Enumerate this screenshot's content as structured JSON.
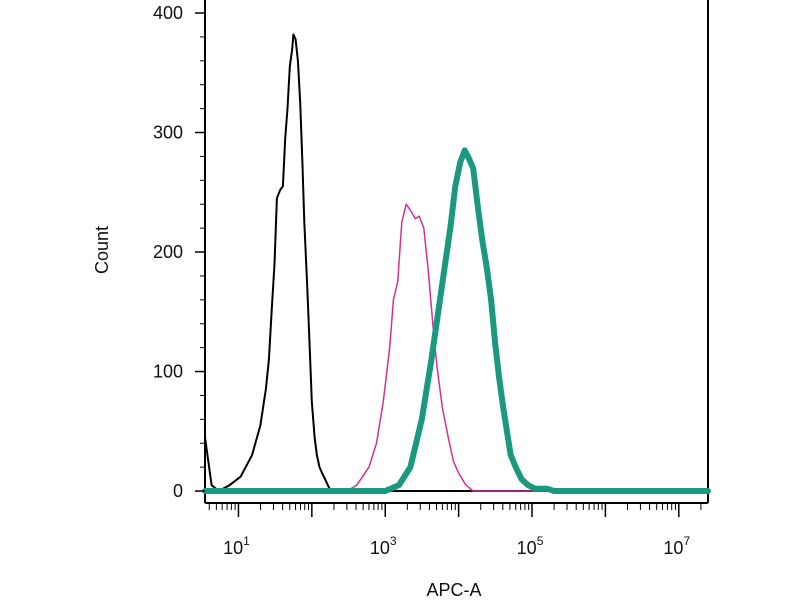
{
  "chart_data": {
    "type": "line",
    "title": "",
    "xlabel": "APC-A",
    "ylabel": "Count",
    "xscale": "log",
    "xlim": [
      3.5,
      25000000
    ],
    "ylim": [
      -10,
      400
    ],
    "grid": false,
    "legend": "none",
    "y_ticks": [
      {
        "value": 0,
        "label": "0"
      },
      {
        "value": 100,
        "label": "100"
      },
      {
        "value": 200,
        "label": "200"
      },
      {
        "value": 300,
        "label": "300"
      },
      {
        "value": 400,
        "label": "400"
      }
    ],
    "x_ticks": [
      {
        "value": 10,
        "base": "10",
        "exp": "1"
      },
      {
        "value": 1000,
        "base": "10",
        "exp": "3"
      },
      {
        "value": 100000,
        "base": "10",
        "exp": "5"
      },
      {
        "value": 10000000,
        "base": "10",
        "exp": "7"
      }
    ],
    "series": [
      {
        "color": "#000000",
        "x": [
          3.5,
          4.3,
          5.4,
          7.6,
          10.7,
          15.3,
          19.9,
          23.6,
          26,
          28.3,
          31,
          33.4,
          37,
          40.3,
          43.3,
          46.6,
          50,
          54,
          56,
          60,
          64.6,
          69.4,
          74.7,
          79,
          86.7,
          93.6,
          100,
          109,
          117,
          127,
          138,
          151,
          165,
          175,
          190,
          207,
          233,
          271,
          335,
          410,
          500,
          650,
          800,
          1000,
          10000000,
          25000000
        ],
        "y": [
          45,
          5,
          0,
          5,
          12,
          30,
          55,
          85,
          110,
          150,
          190,
          245,
          252,
          255,
          295,
          320,
          355,
          370,
          382,
          378,
          360,
          325,
          270,
          225,
          170,
          120,
          75,
          45,
          30,
          20,
          15,
          10,
          5,
          2,
          0,
          0,
          0,
          0,
          0,
          0,
          0,
          0,
          0,
          0,
          0,
          0
        ]
      },
      {
        "color": "#cc3399",
        "x": [
          3.5,
          300,
          410,
          600,
          760,
          940,
          1150,
          1290,
          1480,
          1680,
          1930,
          2200,
          2560,
          2900,
          3350,
          3850,
          4450,
          5050,
          6000,
          7200,
          8500,
          10000,
          12600,
          15800,
          20000,
          25000000
        ],
        "y": [
          0,
          0,
          5,
          20,
          40,
          75,
          120,
          160,
          175,
          225,
          240,
          235,
          228,
          230,
          220,
          185,
          140,
          105,
          70,
          45,
          25,
          15,
          5,
          0,
          0,
          0
        ]
      },
      {
        "color": "#1a9980",
        "x": [
          3.5,
          1000,
          1540,
          2200,
          3150,
          4250,
          5720,
          7700,
          9000,
          10500,
          12100,
          13900,
          15800,
          18100,
          21000,
          24400,
          27700,
          31300,
          35600,
          40500,
          46000,
          51200,
          60000,
          72000,
          88000,
          110000,
          160000,
          200000,
          25000000
        ],
        "y": [
          0,
          0,
          5,
          20,
          60,
          110,
          165,
          220,
          255,
          275,
          285,
          278,
          270,
          240,
          210,
          185,
          160,
          125,
          95,
          70,
          48,
          30,
          20,
          10,
          5,
          2,
          2,
          0,
          0
        ]
      }
    ]
  }
}
